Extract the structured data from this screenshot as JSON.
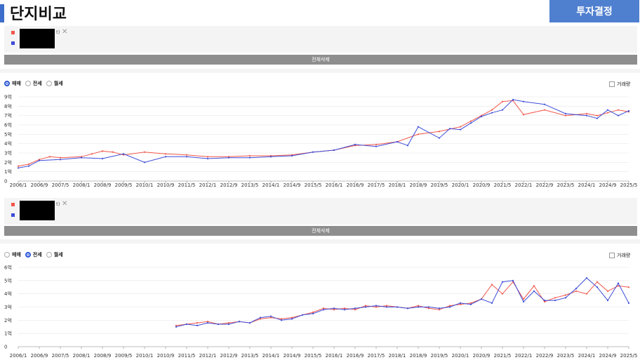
{
  "header": {
    "title": "단지비교",
    "invest_button": "투자결정"
  },
  "compare_panels": [
    {
      "paren": "t)",
      "delete_all": "전체삭제",
      "series_colors": [
        "#f2574b",
        "#3c4cd8"
      ]
    },
    {
      "paren": "t)",
      "delete_all": "전체삭제",
      "series_colors": [
        "#f2574b",
        "#3c4cd8"
      ]
    }
  ],
  "chart_controls": [
    {
      "options": [
        "매매",
        "전세",
        "월세"
      ],
      "selected": "매매",
      "volume_label": "거래량"
    },
    {
      "options": [
        "매매",
        "전세",
        "월세"
      ],
      "selected": "전세",
      "volume_label": "거래량"
    }
  ],
  "chart_data": [
    {
      "type": "line",
      "title": "",
      "xlabel": "",
      "ylabel": "",
      "xlim": [
        "2006/1",
        "2025/5"
      ],
      "ylim": [
        0,
        9
      ],
      "yticks": [
        "0",
        "1억",
        "2억",
        "3억",
        "4억",
        "5억",
        "6억",
        "7억",
        "8억",
        "9억"
      ],
      "xticks": [
        "2006/1",
        "2006/9",
        "2007/5",
        "2008/1",
        "2008/9",
        "2009/5",
        "2010/1",
        "2010/9",
        "2011/5",
        "2012/1",
        "2012/9",
        "2013/5",
        "2014/1",
        "2014/9",
        "2015/5",
        "2016/1",
        "2016/9",
        "2017/5",
        "2018/1",
        "2018/9",
        "2019/5",
        "2020/1",
        "2020/9",
        "2021/5",
        "2022/1",
        "2022/9",
        "2023/5",
        "2024/1",
        "2024/9",
        "2025/5"
      ],
      "grid": true,
      "series": [
        {
          "color": "#f2574b",
          "points": [
            [
              "2006/1",
              1.6
            ],
            [
              "2006/5",
              1.8
            ],
            [
              "2006/9",
              2.3
            ],
            [
              "2007/1",
              2.6
            ],
            [
              "2007/5",
              2.5
            ],
            [
              "2008/1",
              2.6
            ],
            [
              "2008/5",
              2.9
            ],
            [
              "2008/9",
              3.2
            ],
            [
              "2009/1",
              3.1
            ],
            [
              "2009/5",
              2.8
            ],
            [
              "2010/1",
              3.1
            ],
            [
              "2010/9",
              2.9
            ],
            [
              "2011/5",
              2.8
            ],
            [
              "2012/1",
              2.6
            ],
            [
              "2012/9",
              2.6
            ],
            [
              "2013/5",
              2.7
            ],
            [
              "2014/1",
              2.7
            ],
            [
              "2014/9",
              2.8
            ],
            [
              "2015/5",
              3.1
            ],
            [
              "2016/1",
              3.3
            ],
            [
              "2016/9",
              3.8
            ],
            [
              "2017/5",
              3.9
            ],
            [
              "2018/1",
              4.2
            ],
            [
              "2018/9",
              5.0
            ],
            [
              "2019/5",
              5.3
            ],
            [
              "2020/1",
              5.8
            ],
            [
              "2020/5",
              6.4
            ],
            [
              "2020/9",
              7.0
            ],
            [
              "2021/1",
              7.6
            ],
            [
              "2021/5",
              8.5
            ],
            [
              "2021/9",
              8.6
            ],
            [
              "2022/1",
              7.1
            ],
            [
              "2022/9",
              7.6
            ],
            [
              "2023/5",
              7.0
            ],
            [
              "2024/1",
              7.2
            ],
            [
              "2024/5",
              7.0
            ],
            [
              "2024/9",
              7.3
            ],
            [
              "2025/1",
              7.6
            ],
            [
              "2025/5",
              7.4
            ]
          ]
        },
        {
          "color": "#3c4cd8",
          "points": [
            [
              "2006/1",
              1.4
            ],
            [
              "2006/5",
              1.6
            ],
            [
              "2006/9",
              2.2
            ],
            [
              "2007/5",
              2.3
            ],
            [
              "2008/1",
              2.5
            ],
            [
              "2008/9",
              2.4
            ],
            [
              "2009/5",
              2.9
            ],
            [
              "2010/1",
              2.0
            ],
            [
              "2010/9",
              2.6
            ],
            [
              "2011/5",
              2.6
            ],
            [
              "2012/1",
              2.4
            ],
            [
              "2012/9",
              2.5
            ],
            [
              "2013/5",
              2.5
            ],
            [
              "2014/1",
              2.6
            ],
            [
              "2014/9",
              2.7
            ],
            [
              "2015/5",
              3.1
            ],
            [
              "2016/1",
              3.3
            ],
            [
              "2016/9",
              3.9
            ],
            [
              "2017/5",
              3.7
            ],
            [
              "2018/1",
              4.2
            ],
            [
              "2018/5",
              3.8
            ],
            [
              "2018/9",
              5.8
            ],
            [
              "2019/5",
              4.6
            ],
            [
              "2019/9",
              5.6
            ],
            [
              "2020/1",
              5.5
            ],
            [
              "2020/5",
              6.2
            ],
            [
              "2020/9",
              6.9
            ],
            [
              "2021/1",
              7.3
            ],
            [
              "2021/5",
              7.6
            ],
            [
              "2021/9",
              8.7
            ],
            [
              "2022/1",
              8.5
            ],
            [
              "2022/9",
              8.2
            ],
            [
              "2023/5",
              7.2
            ],
            [
              "2024/1",
              7.0
            ],
            [
              "2024/5",
              6.7
            ],
            [
              "2024/9",
              7.6
            ],
            [
              "2025/1",
              7.0
            ],
            [
              "2025/5",
              7.5
            ]
          ]
        }
      ]
    },
    {
      "type": "line",
      "title": "",
      "xlabel": "",
      "ylabel": "",
      "xlim": [
        "2006/1",
        "2025/5"
      ],
      "ylim": [
        0,
        6
      ],
      "yticks": [
        "0",
        "1억",
        "2억",
        "3억",
        "4억",
        "5억",
        "6억"
      ],
      "xticks": [
        "2006/1",
        "2006/9",
        "2007/5",
        "2008/1",
        "2008/9",
        "2009/5",
        "2010/1",
        "2010/9",
        "2011/5",
        "2012/1",
        "2012/9",
        "2013/5",
        "2014/1",
        "2014/9",
        "2015/5",
        "2016/1",
        "2016/9",
        "2017/5",
        "2018/1",
        "2018/9",
        "2019/5",
        "2020/1",
        "2020/9",
        "2021/5",
        "2022/1",
        "2022/9",
        "2023/5",
        "2024/1",
        "2024/9",
        "2025/5"
      ],
      "grid": true,
      "series": [
        {
          "color": "#f2574b",
          "points": [
            [
              "2011/1",
              1.6
            ],
            [
              "2011/5",
              1.7
            ],
            [
              "2011/9",
              1.8
            ],
            [
              "2012/1",
              1.9
            ],
            [
              "2012/5",
              1.7
            ],
            [
              "2012/9",
              1.8
            ],
            [
              "2013/1",
              1.9
            ],
            [
              "2013/5",
              1.8
            ],
            [
              "2013/9",
              2.1
            ],
            [
              "2014/1",
              2.2
            ],
            [
              "2014/5",
              2.1
            ],
            [
              "2014/9",
              2.2
            ],
            [
              "2015/1",
              2.4
            ],
            [
              "2015/5",
              2.6
            ],
            [
              "2015/9",
              2.9
            ],
            [
              "2016/1",
              2.8
            ],
            [
              "2016/5",
              2.9
            ],
            [
              "2016/9",
              2.8
            ],
            [
              "2017/1",
              3.1
            ],
            [
              "2017/5",
              3.0
            ],
            [
              "2017/9",
              3.1
            ],
            [
              "2018/1",
              3.0
            ],
            [
              "2018/5",
              2.9
            ],
            [
              "2018/9",
              3.1
            ],
            [
              "2019/1",
              2.9
            ],
            [
              "2019/5",
              2.8
            ],
            [
              "2019/9",
              3.1
            ],
            [
              "2020/1",
              3.2
            ],
            [
              "2020/5",
              3.3
            ],
            [
              "2020/9",
              3.6
            ],
            [
              "2021/1",
              4.7
            ],
            [
              "2021/5",
              4.0
            ],
            [
              "2021/9",
              4.9
            ],
            [
              "2022/1",
              3.6
            ],
            [
              "2022/5",
              4.6
            ],
            [
              "2022/9",
              3.4
            ],
            [
              "2023/1",
              3.7
            ],
            [
              "2023/5",
              3.9
            ],
            [
              "2023/9",
              4.2
            ],
            [
              "2024/1",
              4.0
            ],
            [
              "2024/5",
              4.9
            ],
            [
              "2024/9",
              4.2
            ],
            [
              "2025/1",
              4.6
            ],
            [
              "2025/5",
              4.5
            ]
          ]
        },
        {
          "color": "#3c4cd8",
          "points": [
            [
              "2011/1",
              1.5
            ],
            [
              "2011/5",
              1.7
            ],
            [
              "2011/9",
              1.6
            ],
            [
              "2012/1",
              1.8
            ],
            [
              "2012/5",
              1.7
            ],
            [
              "2012/9",
              1.7
            ],
            [
              "2013/1",
              1.9
            ],
            [
              "2013/5",
              1.8
            ],
            [
              "2013/9",
              2.2
            ],
            [
              "2014/1",
              2.3
            ],
            [
              "2014/5",
              2.0
            ],
            [
              "2014/9",
              2.1
            ],
            [
              "2015/1",
              2.4
            ],
            [
              "2015/5",
              2.5
            ],
            [
              "2015/9",
              2.8
            ],
            [
              "2016/1",
              2.9
            ],
            [
              "2016/5",
              2.8
            ],
            [
              "2016/9",
              2.9
            ],
            [
              "2017/1",
              3.0
            ],
            [
              "2017/5",
              3.1
            ],
            [
              "2017/9",
              3.0
            ],
            [
              "2018/1",
              3.0
            ],
            [
              "2018/5",
              2.9
            ],
            [
              "2018/9",
              3.0
            ],
            [
              "2019/1",
              3.0
            ],
            [
              "2019/5",
              2.9
            ],
            [
              "2019/9",
              3.0
            ],
            [
              "2020/1",
              3.3
            ],
            [
              "2020/5",
              3.2
            ],
            [
              "2020/9",
              3.6
            ],
            [
              "2021/1",
              3.3
            ],
            [
              "2021/5",
              4.9
            ],
            [
              "2021/9",
              5.0
            ],
            [
              "2022/1",
              3.4
            ],
            [
              "2022/5",
              4.2
            ],
            [
              "2022/9",
              3.5
            ],
            [
              "2023/1",
              3.5
            ],
            [
              "2023/5",
              3.7
            ],
            [
              "2023/9",
              4.4
            ],
            [
              "2024/1",
              5.2
            ],
            [
              "2024/5",
              4.5
            ],
            [
              "2024/9",
              3.5
            ],
            [
              "2025/1",
              4.8
            ],
            [
              "2025/5",
              3.3
            ]
          ]
        }
      ]
    }
  ]
}
